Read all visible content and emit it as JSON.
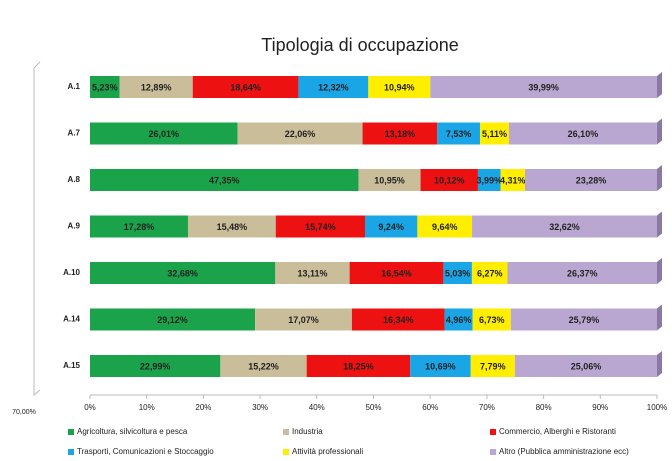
{
  "chart_data": {
    "type": "stacked-bar-horizontal",
    "title": "Tipologia di occupazione",
    "annotations": [
      "70,00%"
    ],
    "categories": [
      "A.1",
      "A.7",
      "A.8",
      "A.9",
      "A.10",
      "A.14",
      "A.15"
    ],
    "xlim": [
      0,
      100
    ],
    "xticks": [
      {
        "value": 0,
        "label": "0%"
      },
      {
        "value": 10,
        "label": "10%"
      },
      {
        "value": 20,
        "label": "20%"
      },
      {
        "value": 30,
        "label": "30%"
      },
      {
        "value": 40,
        "label": "40%"
      },
      {
        "value": 50,
        "label": "50%"
      },
      {
        "value": 60,
        "label": "60%"
      },
      {
        "value": 70,
        "label": "70%"
      },
      {
        "value": 80,
        "label": "80%"
      },
      {
        "value": 90,
        "label": "90%"
      },
      {
        "value": 100,
        "label": "100%"
      }
    ],
    "series": [
      {
        "name": "Agricoltura, silvicoltura e pesca",
        "color": "#1aa34a",
        "values": [
          5.23,
          26.01,
          47.35,
          17.28,
          32.68,
          29.12,
          22.99
        ],
        "value_labels": [
          "5,23%",
          "26,01%",
          "47,35%",
          "17,28%",
          "32,68%",
          "29,12%",
          "22,99%"
        ]
      },
      {
        "name": "Industria",
        "color": "#c9bd9a",
        "values": [
          12.89,
          22.06,
          10.95,
          15.48,
          13.11,
          17.07,
          15.22
        ],
        "value_labels": [
          "12,89%",
          "22,06%",
          "10,95%",
          "15,48%",
          "13,11%",
          "17,07%",
          "15,22%"
        ]
      },
      {
        "name": "Commercio, Alberghi e Ristoranti",
        "color": "#ee1111",
        "values": [
          18.64,
          13.18,
          10.12,
          15.74,
          16.54,
          16.34,
          18.25
        ],
        "value_labels": [
          "18,64%",
          "13,18%",
          "10,12%",
          "15,74%",
          "16,54%",
          "16,34%",
          "18,25%"
        ]
      },
      {
        "name": "Trasporti, Comunicazioni e Stoccaggio",
        "color": "#1aa6e6",
        "values": [
          12.32,
          7.53,
          3.99,
          9.24,
          5.03,
          4.96,
          10.69
        ],
        "value_labels": [
          "12,32%",
          "7,53%",
          "3,99%",
          "9,24%",
          "5,03%",
          "4,96%",
          "10,69%"
        ]
      },
      {
        "name": "Attività professionali",
        "color": "#ffee00",
        "values": [
          10.94,
          5.11,
          4.31,
          9.64,
          6.27,
          6.73,
          7.79
        ],
        "value_labels": [
          "10,94%",
          "5,11%",
          "4,31%",
          "9,64%",
          "6,27%",
          "6,73%",
          "7,79%"
        ]
      },
      {
        "name": "Altro (Pubblica amministrazione ecc)",
        "color": "#b9a7d1",
        "values": [
          39.99,
          26.1,
          23.28,
          32.62,
          26.37,
          25.79,
          25.06
        ],
        "value_labels": [
          "39,99%",
          "26,10%",
          "23,28%",
          "32,62%",
          "26,37%",
          "25,79%",
          "25,06%"
        ]
      }
    ]
  }
}
